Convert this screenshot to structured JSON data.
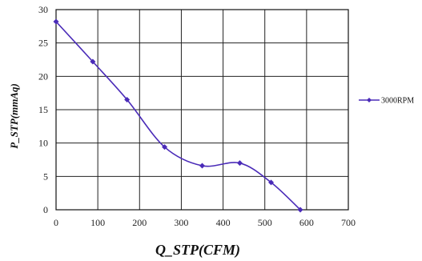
{
  "chart_data": {
    "type": "line",
    "xlabel": "Q_STP(CFM)",
    "ylabel": "P_STP(mmAq)",
    "xlim": [
      0,
      700
    ],
    "ylim": [
      0,
      30
    ],
    "xticks": [
      0,
      100,
      200,
      300,
      400,
      500,
      600,
      700
    ],
    "yticks": [
      0,
      5,
      10,
      15,
      20,
      25,
      30
    ],
    "grid": true,
    "legend_position": "right",
    "series": [
      {
        "name": "3000RPM",
        "color": "#4a2bb8",
        "x": [
          0,
          88,
          170,
          260,
          350,
          440,
          515,
          585
        ],
        "y": [
          28.2,
          22.2,
          16.5,
          9.4,
          6.6,
          7.0,
          4.1,
          0
        ]
      }
    ]
  }
}
